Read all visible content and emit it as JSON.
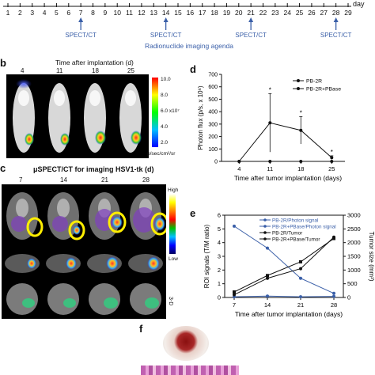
{
  "timeline": {
    "day_label": "day",
    "days": [
      "1",
      "2",
      "3",
      "4",
      "5",
      "6",
      "7",
      "8",
      "9",
      "10",
      "11",
      "12",
      "13",
      "14",
      "15",
      "16",
      "17",
      "18",
      "19",
      "20",
      "21",
      "22",
      "23",
      "24",
      "25",
      "26",
      "27",
      "28",
      "29"
    ],
    "spect_days": [
      7,
      14,
      21,
      28
    ],
    "spect_label": "SPECT/CT",
    "agenda_label": "Radionuclide imaging agenda"
  },
  "panel_b": {
    "letter": "b",
    "title": "Time after implantation (d)",
    "times": [
      "4",
      "11",
      "18",
      "25"
    ],
    "scale_ticks": [
      "10.0",
      "8.0",
      "6.0 x10⁷",
      "4.0",
      "2.0"
    ],
    "scale_unit": "p/sec/cm²/sr"
  },
  "panel_c": {
    "letter": "c",
    "title": "μSPECT/CT for imaging HSV1-tk (d)",
    "times": [
      "7",
      "14",
      "21",
      "28"
    ],
    "scale_high": "High",
    "scale_low": "Low",
    "view_3d": "3-D"
  },
  "panel_d": {
    "letter": "d",
    "chart_data": {
      "type": "line",
      "x": [
        4,
        11,
        18,
        25
      ],
      "series": [
        {
          "name": "PB-2R",
          "values": [
            0,
            0,
            0,
            0
          ],
          "marker": "circle",
          "color": "#111111"
        },
        {
          "name": "PB-2R+PBase",
          "values": [
            0,
            310,
            250,
            30
          ],
          "err": [
            0,
            235,
            110,
            15
          ],
          "marker": "circle",
          "color": "#111111"
        }
      ],
      "sig": [
        "*",
        "*",
        "*"
      ],
      "xlabel": "Time after tumor implantation (days)",
      "ylabel": "Photon flux (p/s, x 10⁶)",
      "xticks": [
        "4",
        "11",
        "18",
        "25"
      ],
      "yticks": [
        "0",
        "100",
        "200",
        "300",
        "400",
        "500",
        "600",
        "700"
      ],
      "ylim": [
        0,
        700
      ]
    }
  },
  "panel_e": {
    "letter": "e",
    "chart_data": {
      "type": "line",
      "x": [
        7,
        14,
        21,
        28
      ],
      "series": [
        {
          "name": "PB-2R/Photon signal",
          "axis": "left",
          "values": [
            0.05,
            0.1,
            0.05,
            0.08
          ],
          "color": "#3a5fa8"
        },
        {
          "name": "PB-2R+PBase/Photon signal",
          "axis": "left",
          "values": [
            5.2,
            3.6,
            1.4,
            0.3
          ],
          "color": "#3a5fa8"
        },
        {
          "name": "PB-2R/Tumor",
          "axis": "right",
          "values": [
            200,
            800,
            1300,
            2150
          ],
          "color": "#111111"
        },
        {
          "name": "PB-2R+PBase/Tumor",
          "axis": "right",
          "values": [
            100,
            700,
            1050,
            2200
          ],
          "color": "#111111"
        }
      ],
      "xlabel": "Time after tumor implantation (days)",
      "ylabel": "ROI signals (T/M ratio)",
      "y2label": "Tumor size (mm³)",
      "xticks": [
        "7",
        "14",
        "21",
        "28"
      ],
      "yticks": [
        "0",
        "1",
        "2",
        "3",
        "4",
        "5",
        "6"
      ],
      "y2ticks": [
        "0",
        "500",
        "1000",
        "1500",
        "2000",
        "2500",
        "3000"
      ],
      "ylim": [
        0,
        6
      ],
      "y2lim": [
        0,
        3000
      ]
    }
  },
  "panel_f": {
    "letter": "f"
  }
}
